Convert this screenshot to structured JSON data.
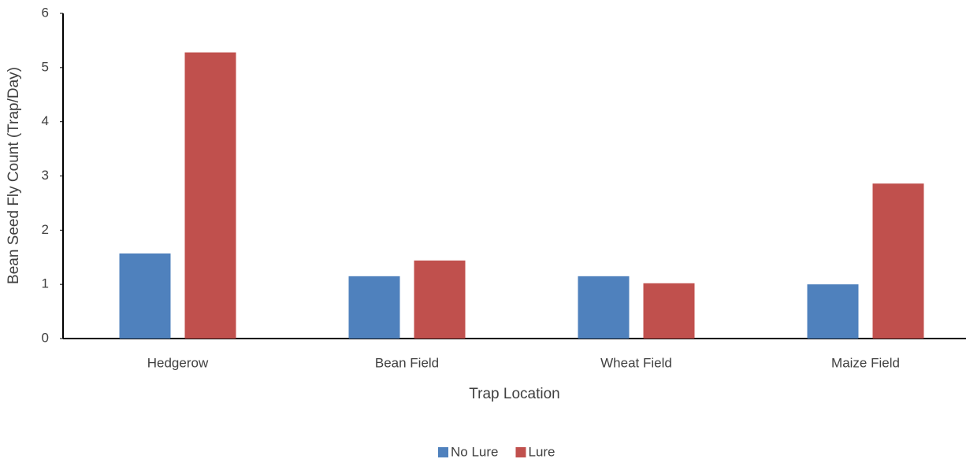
{
  "chart_data": {
    "type": "bar",
    "x_label": "Trap Location",
    "y_label": "Bean Seed Fly Count (Trap/Day)",
    "categories": [
      "Hedgerow",
      "Bean Field",
      "Wheat Field",
      "Maize Field"
    ],
    "series": [
      {
        "name": "No Lure",
        "color": "#4f81bd",
        "values": [
          1.57,
          1.15,
          1.15,
          1.0
        ]
      },
      {
        "name": "Lure",
        "color": "#c0504d",
        "values": [
          5.28,
          1.44,
          1.02,
          2.86
        ]
      }
    ],
    "ylim": [
      0,
      6
    ],
    "yticks": [
      0,
      1,
      2,
      3,
      4,
      5,
      6
    ],
    "grid": false,
    "legend": "bottom"
  }
}
